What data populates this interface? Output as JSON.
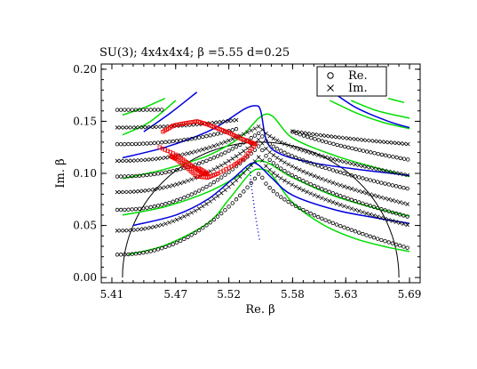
{
  "chart_data": {
    "type": "scatter",
    "title": "SU(3);    4x4x4x4;    β =5.55       d=0.25",
    "xlabel": "Re. β",
    "ylabel": "Im. β",
    "xlim": [
      5.4,
      5.7
    ],
    "ylim": [
      -0.005,
      0.205
    ],
    "x_ticks": [
      "5.41",
      "5.47",
      "5.52",
      "5.58",
      "5.63",
      "5.69"
    ],
    "x_tick_values": [
      5.41,
      5.47,
      5.52,
      5.58,
      5.63,
      5.69
    ],
    "y_ticks": [
      "0.00",
      "0.05",
      "0.10",
      "0.15",
      "0.20"
    ],
    "y_tick_values": [
      0.0,
      0.05,
      0.1,
      0.15,
      0.2
    ],
    "grid": false,
    "legend_position": "top-right",
    "legend": [
      {
        "label": "Re.",
        "marker": "circle"
      },
      {
        "label": "Im.",
        "marker": "cross"
      }
    ],
    "colors": {
      "black": "#000000",
      "green": "#00dd00",
      "blue": "#0000dd",
      "red": "#ee0000"
    },
    "semicircle": {
      "center_x": 5.55,
      "radius": 0.13
    },
    "series": [
      {
        "color": "green",
        "x": [
          5.425,
          5.46,
          5.5,
          5.52,
          5.54,
          5.55,
          5.56,
          5.58,
          5.61,
          5.64,
          5.67,
          5.69
        ],
        "y": [
          0.022,
          0.031,
          0.052,
          0.075,
          0.1,
          0.104,
          0.099,
          0.072,
          0.05,
          0.037,
          0.029,
          0.025
        ]
      },
      {
        "color": "green",
        "x": [
          5.42,
          5.46,
          5.5,
          5.53,
          5.55,
          5.58,
          5.62,
          5.66,
          5.69
        ],
        "y": [
          0.06,
          0.068,
          0.082,
          0.098,
          0.112,
          0.096,
          0.078,
          0.066,
          0.059
        ]
      },
      {
        "color": "green",
        "x": [
          5.42,
          5.46,
          5.5,
          5.53,
          5.556,
          5.58,
          5.62,
          5.66,
          5.69
        ],
        "y": [
          0.095,
          0.104,
          0.117,
          0.134,
          0.157,
          0.134,
          0.117,
          0.105,
          0.097
        ]
      },
      {
        "color": "green",
        "x": [
          5.42,
          5.445,
          5.47
        ],
        "y": [
          0.137,
          0.149,
          0.17
        ]
      },
      {
        "color": "green",
        "x": [
          5.42,
          5.44,
          5.46
        ],
        "y": [
          0.156,
          0.163,
          0.172
        ]
      },
      {
        "color": "green",
        "x": [
          5.615,
          5.64,
          5.665,
          5.69
        ],
        "y": [
          0.17,
          0.158,
          0.149,
          0.143
        ]
      },
      {
        "color": "green",
        "x": [
          5.635,
          5.66,
          5.69
        ],
        "y": [
          0.17,
          0.16,
          0.153
        ]
      },
      {
        "color": "green",
        "x": [
          5.67,
          5.685
        ],
        "y": [
          0.172,
          0.168
        ]
      },
      {
        "color": "blue",
        "x": [
          5.43,
          5.47,
          5.5,
          5.525,
          5.54,
          5.548,
          5.56,
          5.58,
          5.62,
          5.66,
          5.69
        ],
        "y": [
          0.05,
          0.06,
          0.075,
          0.096,
          0.109,
          0.108,
          0.096,
          0.079,
          0.065,
          0.057,
          0.052
        ]
      },
      {
        "color": "blue",
        "x": [
          5.42,
          5.46,
          5.5,
          5.52,
          5.535,
          5.545,
          5.55,
          5.556,
          5.57,
          5.6,
          5.64,
          5.69
        ],
        "y": [
          0.115,
          0.125,
          0.14,
          0.152,
          0.162,
          0.165,
          0.16,
          0.13,
          0.118,
          0.11,
          0.104,
          0.098
        ]
      },
      {
        "color": "blue",
        "x": [
          5.44,
          5.465,
          5.49
        ],
        "y": [
          0.14,
          0.158,
          0.178
        ]
      },
      {
        "color": "blue",
        "x": [
          5.615,
          5.64,
          5.67,
          5.69
        ],
        "y": [
          0.18,
          0.163,
          0.15,
          0.144
        ]
      },
      {
        "color": "blue",
        "x": [
          5.54,
          5.541,
          5.543,
          5.545,
          5.547,
          5.549
        ],
        "y": [
          0.105,
          0.09,
          0.075,
          0.06,
          0.047,
          0.036
        ]
      }
    ]
  }
}
